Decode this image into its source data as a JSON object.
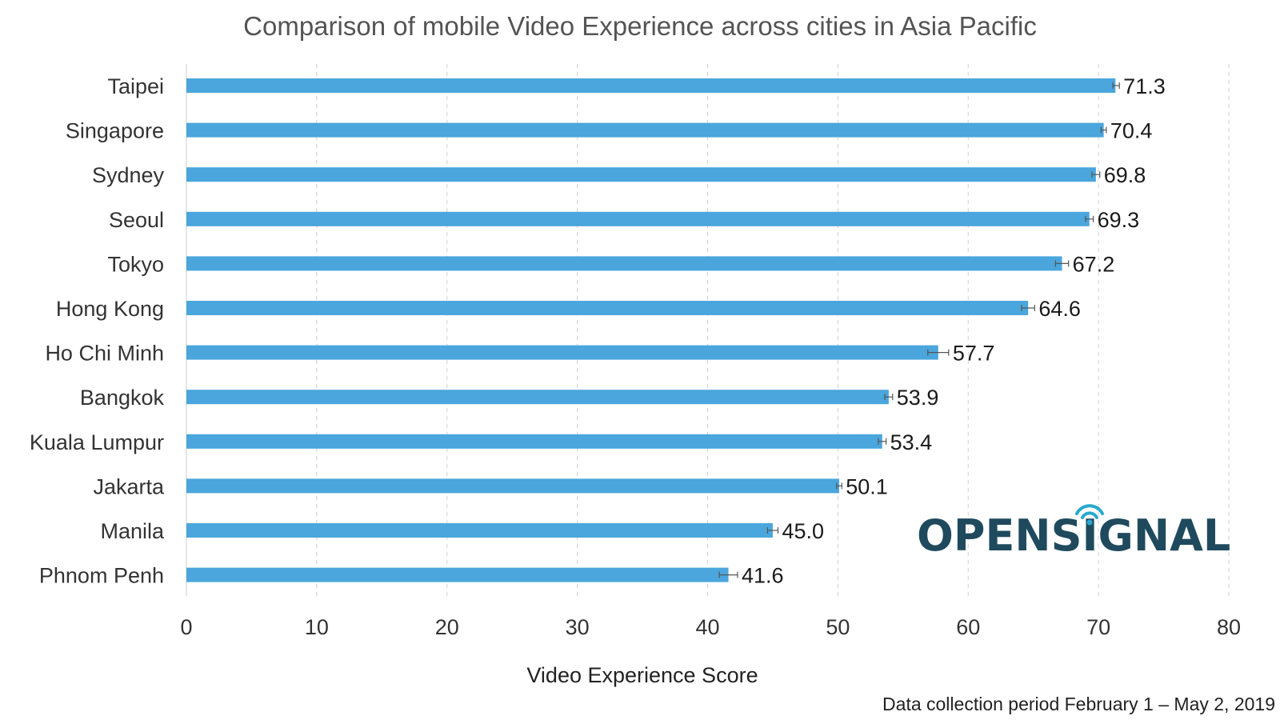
{
  "chart_data": {
    "type": "bar",
    "orientation": "horizontal",
    "title": "Comparison of mobile Video Experience across cities in Asia Pacific",
    "xlabel": "Video Experience Score",
    "ylabel": "",
    "xlim": [
      0,
      80
    ],
    "x_ticks": [
      0,
      10,
      20,
      30,
      40,
      50,
      60,
      70,
      80
    ],
    "grid": "vertical-dashed",
    "error_bars": true,
    "bar_color": "#4aa6dc",
    "categories": [
      "Taipei",
      "Singapore",
      "Sydney",
      "Seoul",
      "Tokyo",
      "Hong Kong",
      "Ho Chi Minh",
      "Bangkok",
      "Kuala Lumpur",
      "Jakarta",
      "Manila",
      "Phnom Penh"
    ],
    "values": [
      71.3,
      70.4,
      69.8,
      69.3,
      67.2,
      64.6,
      57.7,
      53.9,
      53.4,
      50.1,
      45.0,
      41.6
    ],
    "value_labels": [
      "71.3",
      "70.4",
      "69.8",
      "69.3",
      "67.2",
      "64.6",
      "57.7",
      "53.9",
      "53.4",
      "50.1",
      "45.0",
      "41.6"
    ],
    "error_low": [
      71.1,
      70.2,
      69.5,
      69.0,
      66.7,
      64.1,
      56.9,
      53.6,
      53.1,
      49.9,
      44.6,
      40.9
    ],
    "error_high": [
      71.6,
      70.6,
      70.1,
      69.6,
      67.7,
      65.1,
      58.5,
      54.2,
      53.7,
      50.3,
      45.4,
      42.3
    ]
  },
  "footnote": "Data collection period February 1 – May 2, 2019",
  "logo": {
    "text": "OPENSIGNAL",
    "color": "#1f4a5e",
    "accent": "#27a9cf"
  }
}
